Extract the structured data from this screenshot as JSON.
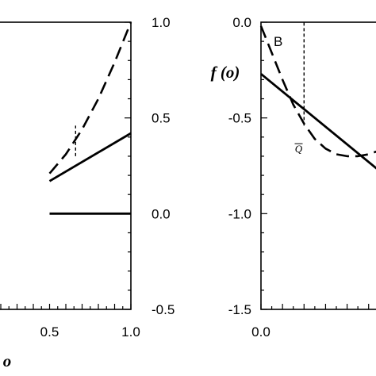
{
  "chart_data": [
    {
      "type": "line",
      "panel": "A",
      "title": "",
      "xlabel": "o",
      "ylabel": "",
      "xlim": [
        0.0,
        1.0
      ],
      "ylim": [
        -0.5,
        1.0
      ],
      "y_axis_side": "right",
      "grid": false,
      "x_ticks": [
        {
          "value": 0.5,
          "label": "0.5"
        },
        {
          "value": 1.0,
          "label": "1.0"
        }
      ],
      "y_ticks": [
        {
          "value": 1.0,
          "label": "1.0"
        },
        {
          "value": 0.5,
          "label": "0.5"
        },
        {
          "value": 0.0,
          "label": "0.0"
        },
        {
          "value": -0.5,
          "label": "-0.5"
        }
      ],
      "series": [
        {
          "style": "dashed",
          "x": [
            0.5,
            0.6,
            0.7,
            0.8,
            0.9,
            1.0
          ],
          "y": [
            0.21,
            0.31,
            0.44,
            0.6,
            0.79,
            1.0
          ]
        },
        {
          "style": "solid",
          "x": [
            0.5,
            1.0
          ],
          "y": [
            0.17,
            0.42
          ]
        },
        {
          "style": "solid",
          "x": [
            0.5,
            1.0
          ],
          "y": [
            0.0,
            0.0
          ]
        }
      ],
      "vertical_marker": {
        "x": 0.66,
        "y_from": 0.3,
        "y_to": 0.46,
        "style": "dashed"
      }
    },
    {
      "type": "line",
      "panel": "B",
      "panel_label": "B",
      "title": "",
      "xlabel": "",
      "ylabel": "f (o)",
      "xlim": [
        0.0,
        0.63
      ],
      "ylim": [
        -1.5,
        0.0
      ],
      "y_axis_side": "left",
      "grid": false,
      "x_ticks": [
        {
          "value": 0.0,
          "label": "0.0"
        }
      ],
      "y_ticks": [
        {
          "value": 0.0,
          "label": "0.0"
        },
        {
          "value": -0.5,
          "label": "-0.5"
        },
        {
          "value": -1.0,
          "label": "-1.0"
        },
        {
          "value": -1.5,
          "label": "-1.5"
        }
      ],
      "series": [
        {
          "style": "dashed",
          "x": [
            0.0,
            0.05,
            0.1,
            0.15,
            0.2,
            0.25,
            0.3,
            0.35,
            0.4,
            0.45,
            0.5,
            0.55,
            0.6
          ],
          "y": [
            -0.02,
            -0.16,
            -0.3,
            -0.43,
            -0.53,
            -0.61,
            -0.66,
            -0.69,
            -0.7,
            -0.7,
            -0.69,
            -0.67,
            -0.64
          ]
        },
        {
          "style": "solid",
          "x": [
            0.0,
            0.63
          ],
          "y": [
            -0.27,
            -0.85
          ]
        }
      ],
      "vertical_marker": {
        "x": 0.2,
        "y_from": -0.54,
        "y_to": 0.0,
        "style": "dashed"
      },
      "annotation": {
        "text": "Q",
        "overline": true,
        "x": 0.175,
        "y": -0.68
      }
    }
  ]
}
